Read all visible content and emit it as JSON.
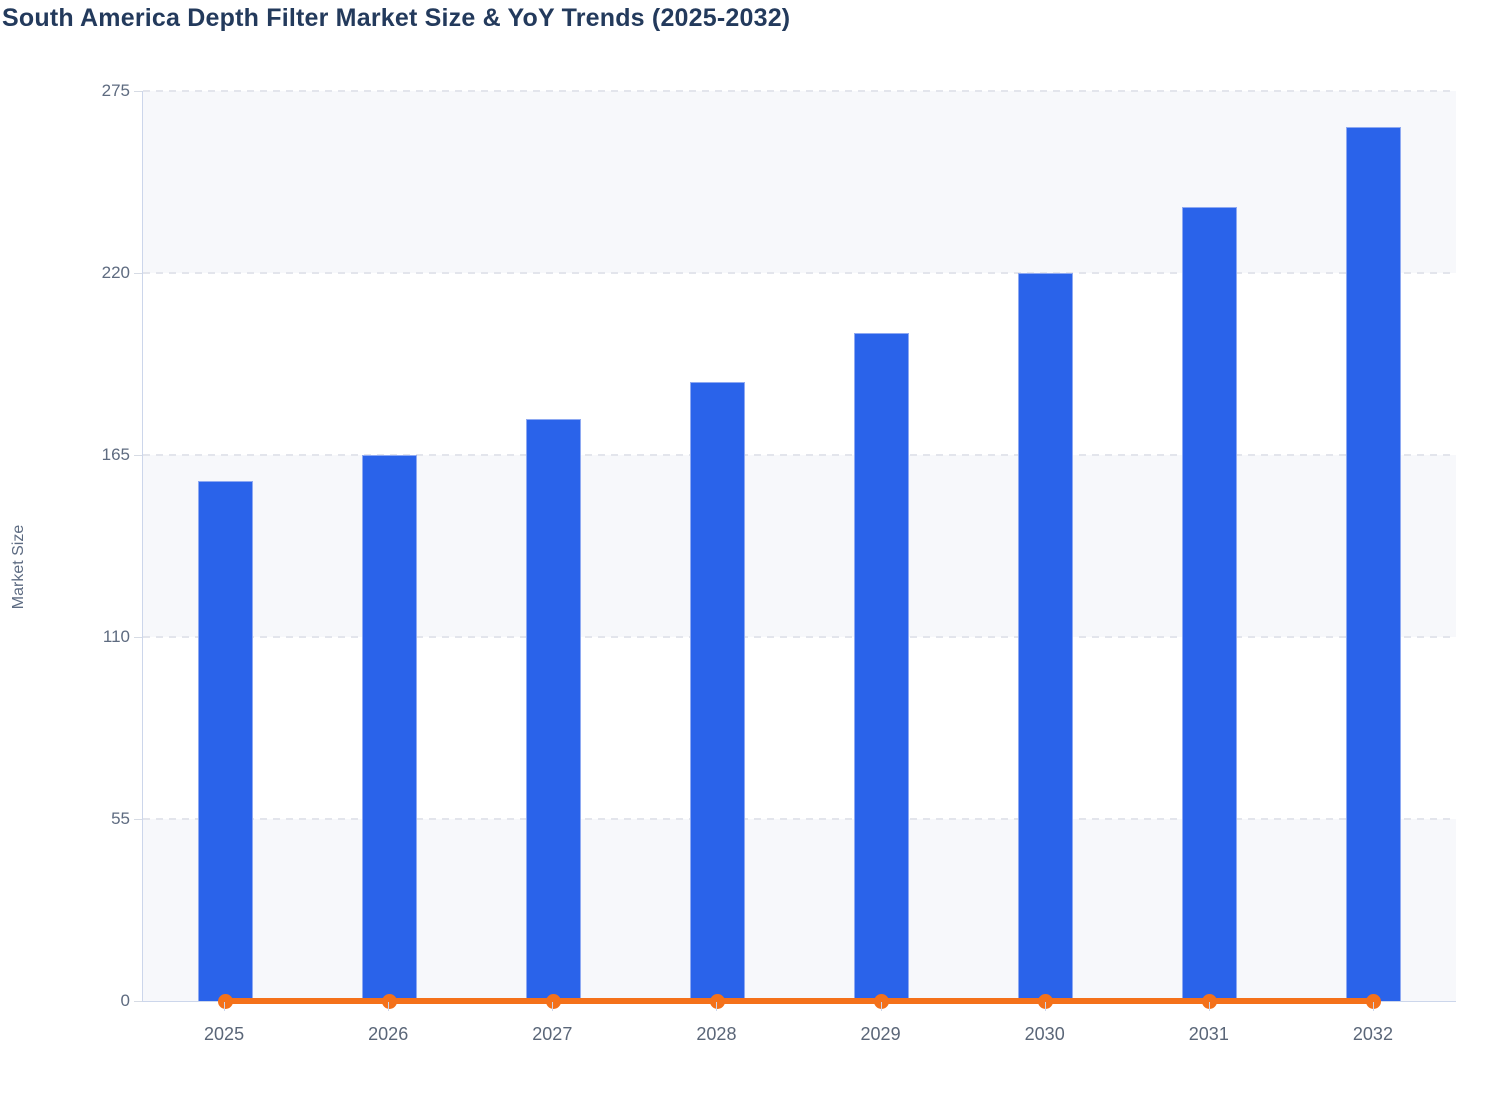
{
  "page": {
    "title": "South America Depth Filter Market Size & YoY Trends (2025-2032)"
  },
  "chart_data": {
    "type": "bar",
    "title": "South America Depth Filter Market Size & YoY Trends (2025-2032)",
    "xlabel": "",
    "ylabel": "Market Size",
    "categories": [
      "2025",
      "2026",
      "2027",
      "2028",
      "2029",
      "2030",
      "2031",
      "2032"
    ],
    "series": [
      {
        "name": "Market Size",
        "type": "bar",
        "color": "#2a63ea",
        "values": [
          157,
          165,
          176,
          187,
          202,
          220,
          240,
          264
        ]
      },
      {
        "name": "YoY Trend",
        "type": "line",
        "color": "#f4711a",
        "values": [
          0,
          0,
          0,
          0,
          0,
          0,
          0,
          0
        ]
      }
    ],
    "ylim": [
      0,
      275
    ],
    "yticks": [
      0,
      55,
      110,
      165,
      220,
      275
    ],
    "grid": "horizontal dashed",
    "legend_position": "none",
    "plot_band_colors": [
      "#f7f8fb",
      "#ffffff"
    ]
  }
}
